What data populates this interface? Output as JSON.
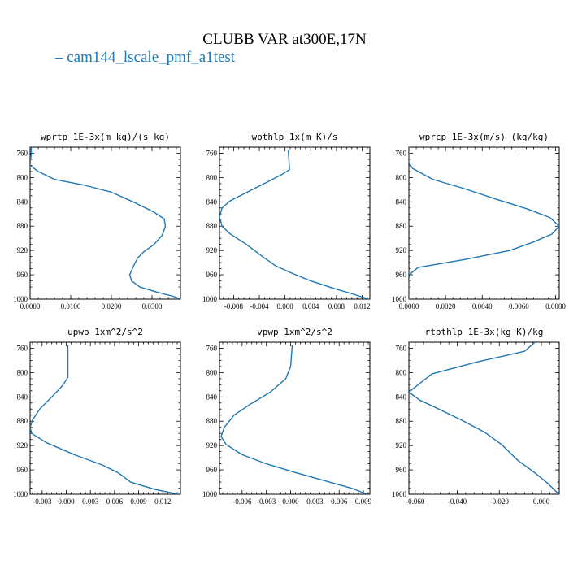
{
  "title": "CLUBB VAR at300E,17N",
  "legend": {
    "series_name": "cam144_lscale_pmf_a1test",
    "color": "#1f77b4"
  },
  "chart_data": [
    {
      "type": "line",
      "title": "wprtp  1E-3x(m kg)/(s kg)",
      "xlim": [
        0.0,
        0.037
      ],
      "ylim": [
        1000,
        750
      ],
      "xticks": [
        0.0,
        0.01,
        0.02,
        0.03
      ],
      "xticklabels": [
        "0.0000",
        "0.0100",
        "0.0200",
        "0.0300"
      ],
      "yticks": [
        760,
        800,
        840,
        880,
        920,
        960,
        1000
      ],
      "series": [
        {
          "color": "#1f77b4",
          "points": [
            [
              0.0003,
              750
            ],
            [
              0.0003,
              758
            ],
            [
              0.0001,
              772
            ],
            [
              0.0,
              780
            ],
            [
              0.002,
              790
            ],
            [
              0.006,
              803
            ],
            [
              0.013,
              812
            ],
            [
              0.02,
              824
            ],
            [
              0.026,
              842
            ],
            [
              0.0305,
              857
            ],
            [
              0.033,
              868
            ],
            [
              0.0333,
              880
            ],
            [
              0.0325,
              895
            ],
            [
              0.0305,
              910
            ],
            [
              0.028,
              922
            ],
            [
              0.0265,
              932
            ],
            [
              0.0255,
              945
            ],
            [
              0.0245,
              960
            ],
            [
              0.025,
              970
            ],
            [
              0.027,
              980
            ],
            [
              0.031,
              988
            ],
            [
              0.035,
              995
            ],
            [
              0.0372,
              1000
            ]
          ]
        }
      ]
    },
    {
      "type": "line",
      "title": "wpthlp  1x(m K)/s",
      "xlim": [
        -0.0102,
        0.0132
      ],
      "ylim": [
        1000,
        750
      ],
      "xticks": [
        -0.008,
        -0.004,
        0.0,
        0.004,
        0.008,
        0.012
      ],
      "xticklabels": [
        "-0.008",
        "-0.004",
        "0.000",
        "0.004",
        "0.008",
        "0.012"
      ],
      "yticks": [
        760,
        800,
        840,
        880,
        920,
        960,
        1000
      ],
      "series": [
        {
          "color": "#1f77b4",
          "points": [
            [
              0.0005,
              755
            ],
            [
              0.0006,
              770
            ],
            [
              0.0007,
              787
            ],
            [
              -0.0005,
              795
            ],
            [
              -0.0025,
              806
            ],
            [
              -0.0055,
              822
            ],
            [
              -0.0085,
              838
            ],
            [
              -0.0098,
              850
            ],
            [
              -0.0102,
              865
            ],
            [
              -0.0098,
              880
            ],
            [
              -0.0085,
              893
            ],
            [
              -0.006,
              910
            ],
            [
              -0.0035,
              930
            ],
            [
              -0.0015,
              945
            ],
            [
              0.001,
              957
            ],
            [
              0.004,
              970
            ],
            [
              0.0075,
              982
            ],
            [
              0.011,
              993
            ],
            [
              0.013,
              1000
            ]
          ]
        }
      ]
    },
    {
      "type": "line",
      "title": "wprcp  1E-3x(m/s) (kg/kg)",
      "xlim": [
        0.0,
        0.0082
      ],
      "ylim": [
        1000,
        750
      ],
      "xticks": [
        0.0,
        0.002,
        0.004,
        0.006,
        0.008
      ],
      "xticklabels": [
        "0.0000",
        "0.0020",
        "0.0040",
        "0.0060",
        "0.0080"
      ],
      "yticks": [
        760,
        800,
        840,
        880,
        920,
        960,
        1000
      ],
      "series": [
        {
          "color": "#1f77b4",
          "points": [
            [
              0.0,
              750
            ],
            [
              0.0,
              775
            ],
            [
              0.0002,
              785
            ],
            [
              0.0013,
              803
            ],
            [
              0.003,
              818
            ],
            [
              0.0048,
              836
            ],
            [
              0.0065,
              852
            ],
            [
              0.0077,
              866
            ],
            [
              0.0082,
              880
            ],
            [
              0.0078,
              893
            ],
            [
              0.0068,
              906
            ],
            [
              0.0055,
              920
            ],
            [
              0.003,
              935
            ],
            [
              0.0005,
              948
            ],
            [
              0.0001,
              958
            ],
            [
              0.0,
              965
            ],
            [
              0.0,
              1000
            ]
          ]
        }
      ]
    },
    {
      "type": "line",
      "title": "upwp  1xm^2/s^2",
      "xlim": [
        -0.0045,
        0.0142
      ],
      "ylim": [
        1000,
        750
      ],
      "xticks": [
        -0.003,
        0.0,
        0.003,
        0.006,
        0.009,
        0.012
      ],
      "xticklabels": [
        "-0.003",
        "0.000",
        "0.003",
        "0.006",
        "0.009",
        "0.012"
      ],
      "yticks": [
        760,
        800,
        840,
        880,
        920,
        960,
        1000
      ],
      "series": [
        {
          "color": "#1f77b4",
          "points": [
            [
              0.0002,
              755
            ],
            [
              0.0002,
              785
            ],
            [
              0.0002,
              808
            ],
            [
              -0.0005,
              822
            ],
            [
              -0.0018,
              840
            ],
            [
              -0.0033,
              860
            ],
            [
              -0.0042,
              878
            ],
            [
              -0.0045,
              890
            ],
            [
              -0.0043,
              900
            ],
            [
              -0.0025,
              915
            ],
            [
              0.001,
              935
            ],
            [
              0.0045,
              952
            ],
            [
              0.0065,
              965
            ],
            [
              0.008,
              980
            ],
            [
              0.011,
              992
            ],
            [
              0.014,
              1000
            ]
          ]
        }
      ]
    },
    {
      "type": "line",
      "title": "vpwp  1xm^2/s^2",
      "xlim": [
        -0.0088,
        0.0098
      ],
      "ylim": [
        1000,
        750
      ],
      "xticks": [
        -0.006,
        -0.003,
        0.0,
        0.003,
        0.006,
        0.009
      ],
      "xticklabels": [
        "-0.006",
        "-0.003",
        "0.000",
        "0.003",
        "0.006",
        "0.009"
      ],
      "yticks": [
        760,
        800,
        840,
        880,
        920,
        960,
        1000
      ],
      "series": [
        {
          "color": "#1f77b4",
          "points": [
            [
              0.0002,
              755
            ],
            [
              0.0,
              790
            ],
            [
              -0.0006,
              810
            ],
            [
              -0.0025,
              832
            ],
            [
              -0.005,
              852
            ],
            [
              -0.007,
              870
            ],
            [
              -0.0082,
              890
            ],
            [
              -0.0086,
              905
            ],
            [
              -0.008,
              918
            ],
            [
              -0.006,
              935
            ],
            [
              -0.003,
              950
            ],
            [
              0.0005,
              964
            ],
            [
              0.004,
              977
            ],
            [
              0.0075,
              990
            ],
            [
              0.0095,
              1000
            ]
          ]
        }
      ]
    },
    {
      "type": "line",
      "title": "rtpthlp  1E-3x(kg K)/kg",
      "xlim": [
        -0.063,
        0.0085
      ],
      "ylim": [
        1000,
        750
      ],
      "xticks": [
        -0.06,
        -0.04,
        -0.02,
        0.0
      ],
      "xticklabels": [
        "-0.060",
        "-0.040",
        "-0.020",
        "0.000"
      ],
      "yticks": [
        760,
        800,
        840,
        880,
        920,
        960,
        1000
      ],
      "series": [
        {
          "color": "#1f77b4",
          "points": [
            [
              -0.003,
              750
            ],
            [
              -0.008,
              765
            ],
            [
              -0.03,
              782
            ],
            [
              -0.052,
              802
            ],
            [
              -0.063,
              832
            ],
            [
              -0.058,
              845
            ],
            [
              -0.05,
              858
            ],
            [
              -0.038,
              878
            ],
            [
              -0.027,
              898
            ],
            [
              -0.019,
              918
            ],
            [
              -0.011,
              945
            ],
            [
              -0.003,
              965
            ],
            [
              0.003,
              982
            ],
            [
              0.0083,
              1000
            ]
          ]
        }
      ]
    }
  ]
}
